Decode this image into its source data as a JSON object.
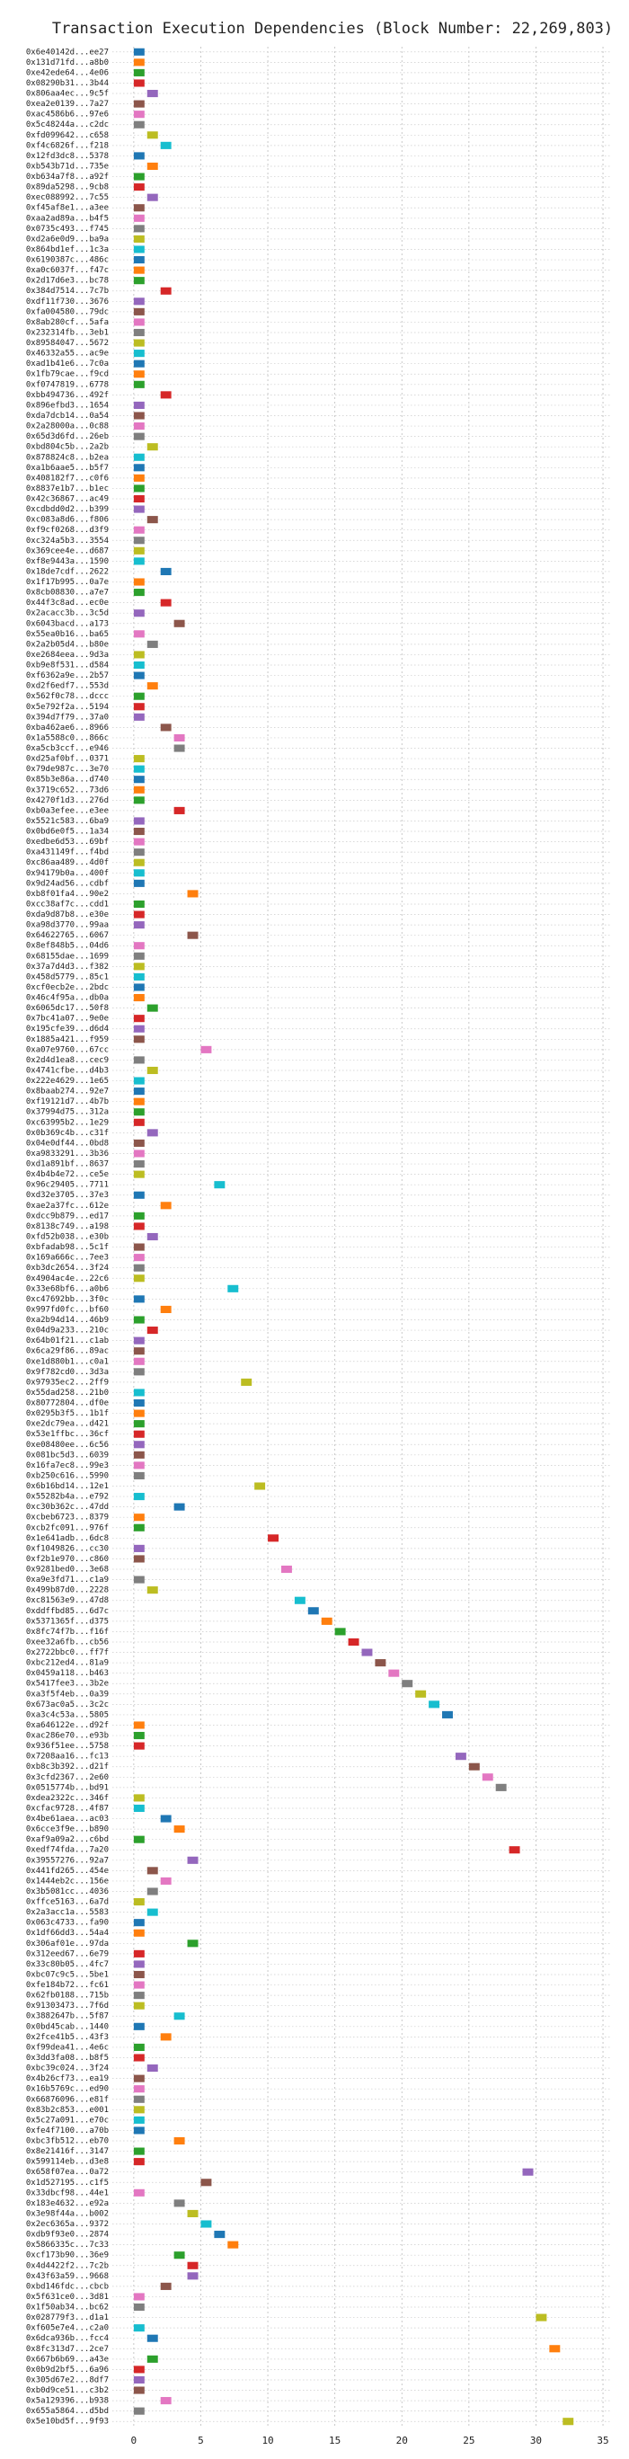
{
  "chart_data": {
    "type": "gantt",
    "title": "Transaction Execution Dependencies (Block Number: 22,269,803)",
    "categories": [
      "0x6e40142d...ee27",
      "0x131d71fd...a8b0",
      "0xe42ede64...4e06",
      "0x08290b31...3b44",
      "0x806aa4ec...9c5f",
      "0xea2e0139...7a27",
      "0xac4586b6...97e6",
      "0x5c48244a...c2dc",
      "0xfd099642...c658",
      "0xf4c6826f...f218",
      "0x12fd3dc8...5378",
      "0xb543b71d...735e",
      "0xb634a7f8...a92f",
      "0x89da5298...9cb8",
      "0xec088992...7c55",
      "0xf45af8e1...a3ee",
      "0xaa2ad89a...b4f5",
      "0x0735c493...f745",
      "0xd2a6e0d9...ba9a",
      "0x864bd1ef...1c3a",
      "0x6190387c...486c",
      "0xa0c6037f...f47c",
      "0x2d17d6e3...bc78",
      "0x384d7514...7c7b",
      "0xdf11f730...3676",
      "0xfa004580...79dc",
      "0x8ab280cf...5afa",
      "0x232314fb...3eb1",
      "0x89584047...5672",
      "0x46332a55...ac9e",
      "0xad1b41e6...7c0a",
      "0x1fb79cae...f9cd",
      "0xf0747819...6778",
      "0xbb494736...492f",
      "0x896efbd3...1654",
      "0xda7dcb14...0a54",
      "0x2a28000a...0c88",
      "0x65d3d6fd...26eb",
      "0xbd804c5b...2a2b",
      "0x878824c8...b2ea",
      "0xa1b6aae5...b5f7",
      "0x408182f7...c0f6",
      "0x8837e1b7...b1ec",
      "0x42c36867...ac49",
      "0xcdbdd0d2...b399",
      "0xc083a8d6...f806",
      "0xf9cf0268...d3f9",
      "0xc324a5b3...3554",
      "0x369cee4e...d687",
      "0xf8e9443a...1590",
      "0x18de7cdf...2622",
      "0x1f17b995...0a7e",
      "0x8cb08830...a7e7",
      "0x44f3c8ad...ec0e",
      "0x2acacc3b...3c5d",
      "0x6043bacd...a173",
      "0x55ea0b16...ba65",
      "0x2a2b05d4...b80e",
      "0xe2684eea...9d3a",
      "0xb9e8f531...d584",
      "0xf6362a9e...2b57",
      "0xd2f6edf7...553d",
      "0x562f0c78...dccc",
      "0x5e792f2a...5194",
      "0x394d7f79...37a0",
      "0xba462ae6...8966",
      "0x1a5588c0...866c",
      "0xa5cb3ccf...e946",
      "0xd25af0bf...0371",
      "0x79de987c...3e70",
      "0x85b3e86a...d740",
      "0x3719c652...73d6",
      "0x4270f1d3...276d",
      "0xb0a3efee...e3ee",
      "0x5521c583...6ba9",
      "0x0bd6e0f5...1a34",
      "0xedbe6d53...69bf",
      "0xa431149f...f4bd",
      "0xc86aa489...4d0f",
      "0x94179b0a...400f",
      "0x9d24ad56...cdbf",
      "0xb8f01fa4...90e2",
      "0xcc38af7c...cdd1",
      "0xda9d87b8...e30e",
      "0xa98d3770...99aa",
      "0x64622765...6067",
      "0x8ef848b5...04d6",
      "0x68155dae...1699",
      "0x37a7d4d3...f382",
      "0x458d5779...85c1",
      "0xcf0ecb2e...2bdc",
      "0x46c4f95a...db0a",
      "0x6065dc17...50f8",
      "0x7bc41a07...9e0e",
      "0x195cfe39...d6d4",
      "0x1885a421...f959",
      "0xa07e9760...67cc",
      "0x2d4d1ea8...cec9",
      "0x4741cfbe...d4b3",
      "0x222e4629...1e65",
      "0x8baab274...92e7",
      "0xf19121d7...4b7b",
      "0x37994d75...312a",
      "0xc63995b2...1e29",
      "0x0b369c4b...c31f",
      "0x04e0df44...0bd8",
      "0xa9833291...3b36",
      "0xd1a891bf...8637",
      "0x4b4b4e72...ce5e",
      "0x96c29405...7711",
      "0xd32e3705...37e3",
      "0xae2a37fc...612e",
      "0xdcc9b879...ed17",
      "0x8138c749...a198",
      "0xfd52b038...e30b",
      "0xbfadab98...5c1f",
      "0x169a666c...7ee3",
      "0xb3dc2654...3f24",
      "0x4904ac4e...22c6",
      "0x33e68bf6...a0b6",
      "0xc47692bb...3f0c",
      "0x997fd0fc...bf60",
      "0xa2b94d14...46b9",
      "0x04d9a233...210c",
      "0x64b01f21...c1ab",
      "0x6ca29f86...89ac",
      "0xe1d880b1...c0a1",
      "0x9f782cd0...3d3a",
      "0x97935ec2...2ff9",
      "0x55dad258...21b0",
      "0x80772804...df0e",
      "0x0295b3f5...1b1f",
      "0xe2dc79ea...d421",
      "0x53e1ffbc...36cf",
      "0xe08480ee...6c56",
      "0x081bc5d3...6039",
      "0x16fa7ec8...99e3",
      "0xb250c616...5990",
      "0x6b16bd14...12e1",
      "0x55282b4a...e792",
      "0xc30b362c...47dd",
      "0xcbeb6723...8379",
      "0xcb2fc091...976f",
      "0x1e641adb...6dc8",
      "0xf1049826...cc30",
      "0xf2b1e970...c860",
      "0x9281bed0...3e68",
      "0xa9e3fd71...c1a9",
      "0x499b87d0...2228",
      "0xc81563e9...47d8",
      "0xddffbd85...6d7c",
      "0x5371365f...d375",
      "0x8fc74f7b...f16f",
      "0xee32a6fb...cb56",
      "0x2722bbc0...ff7f",
      "0xbc212ed4...81a9",
      "0x0459a118...b463",
      "0x5417fee3...3b2e",
      "0xa3f5f4eb...0a39",
      "0x673ac0a5...3c2c",
      "0xa3c4c53a...5805",
      "0xa646122e...d92f",
      "0xac286e70...e93b",
      "0x936f51ee...5758",
      "0x7208aa16...fc13",
      "0xb8c3b392...d21f",
      "0x3cfd2367...2e60",
      "0x0515774b...bd91",
      "0xdea2322c...346f",
      "0xcfac9728...4f87",
      "0x4be61aea...ac03",
      "0x6cce3f9e...b890",
      "0xaf9a09a2...c6bd",
      "0xedf74fda...7a20",
      "0x39557276...92a7",
      "0x441fd265...454e",
      "0x1444eb2c...156e",
      "0x3b5081cc...4036",
      "0xffce5163...6a7d",
      "0x2a3acc1a...5583",
      "0x063c4733...fa90",
      "0x1df66dd3...54a4",
      "0x306af01e...97da",
      "0x312eed67...6e79",
      "0x33c80b05...4fc7",
      "0xbc07c9c5...5be1",
      "0xfe184b72...fc61",
      "0x62fb0188...715b",
      "0x91303473...7f6d",
      "0x3882647b...5f87",
      "0x0bd45cab...1440",
      "0x2fce41b5...43f3",
      "0xf99dea41...4e6c",
      "0x3dd3fa08...b8f5",
      "0xbc39c024...3f24",
      "0x4b26cf73...ea19",
      "0x16b5769c...ed90",
      "0x66876096...e81f",
      "0x83b2c853...e001",
      "0x5c27a091...e70c",
      "0xfe4f7100...a70b",
      "0xbc3fb512...eb70",
      "0x8e21416f...3147",
      "0x599114eb...d3e8",
      "0x658f07ea...0a72",
      "0x1d527195...c1f5",
      "0x33dbcf98...44e1",
      "0x183e4632...e92a",
      "0x3e98f44a...b002",
      "0x2ec6365a...9372",
      "0xdb9f93e0...2874",
      "0x5866335c...7c33",
      "0xcf173b90...36e9",
      "0x4d4422f2...7c2b",
      "0x43f63a59...9668",
      "0xbd146fdc...cbcb",
      "0x5f631ce0...3d81",
      "0x1f50ab34...bc62",
      "0x028779f3...d1a1",
      "0xf605e7e4...c2a0",
      "0x6dca936b...fcc4",
      "0x8fc313d7...2ce7",
      "0x667b6b69...a43e",
      "0x0b9d2bf5...6a96",
      "0x305d67e2...8df7",
      "0xb0d9ce51...c3b2",
      "0x5a129396...b938",
      "0x655a5864...d5bd",
      "0x5e10bd5f...9f93"
    ],
    "starts": [
      0,
      0,
      0,
      0,
      1,
      0,
      0,
      0,
      1,
      2,
      0,
      1,
      0,
      0,
      1,
      0,
      0,
      0,
      0,
      0,
      0,
      0,
      0,
      2,
      0,
      0,
      0,
      0,
      0,
      0,
      0,
      0,
      0,
      2,
      0,
      0,
      0,
      0,
      1,
      0,
      0,
      0,
      0,
      0,
      0,
      1,
      0,
      0,
      0,
      0,
      2,
      0,
      0,
      2,
      0,
      3,
      0,
      1,
      0,
      0,
      0,
      1,
      0,
      0,
      0,
      2,
      3,
      3,
      0,
      0,
      0,
      0,
      0,
      3,
      0,
      0,
      0,
      0,
      0,
      0,
      0,
      4,
      0,
      0,
      0,
      4,
      0,
      0,
      0,
      0,
      0,
      0,
      1,
      0,
      0,
      0,
      5,
      0,
      1,
      0,
      0,
      0,
      0,
      0,
      1,
      0,
      0,
      0,
      0,
      6,
      0,
      2,
      0,
      0,
      1,
      0,
      0,
      0,
      0,
      7,
      0,
      2,
      0,
      1,
      0,
      0,
      0,
      0,
      8,
      0,
      0,
      0,
      0,
      0,
      0,
      0,
      0,
      0,
      9,
      0,
      3,
      0,
      0,
      10,
      0,
      0,
      11,
      0,
      1,
      12,
      13,
      14,
      15,
      16,
      17,
      18,
      19,
      20,
      21,
      22,
      23,
      0,
      0,
      0,
      24,
      25,
      26,
      27,
      0,
      0,
      2,
      3,
      0,
      28,
      4,
      1,
      2,
      1,
      0,
      1,
      0,
      0,
      4,
      0,
      0,
      0,
      0,
      0,
      0,
      3,
      0,
      2,
      0,
      0,
      1,
      0,
      0,
      0,
      0,
      0,
      0,
      3,
      0,
      0,
      29,
      5,
      0,
      3,
      4,
      5,
      6,
      7,
      3,
      4,
      4,
      2,
      0,
      0,
      30,
      0,
      1,
      31,
      1,
      0,
      0,
      0,
      2,
      0,
      32
    ],
    "duration": 0.8,
    "palette": [
      "#1f77b4",
      "#ff7f0e",
      "#2ca02c",
      "#d62728",
      "#9467bd",
      "#8c564b",
      "#e377c2",
      "#7f7f7f",
      "#bcbd22",
      "#17becf"
    ],
    "xlim": [
      -1.6,
      35.6
    ],
    "xticks": [
      0,
      5,
      10,
      15,
      20,
      25,
      30,
      35
    ],
    "grid": true
  }
}
